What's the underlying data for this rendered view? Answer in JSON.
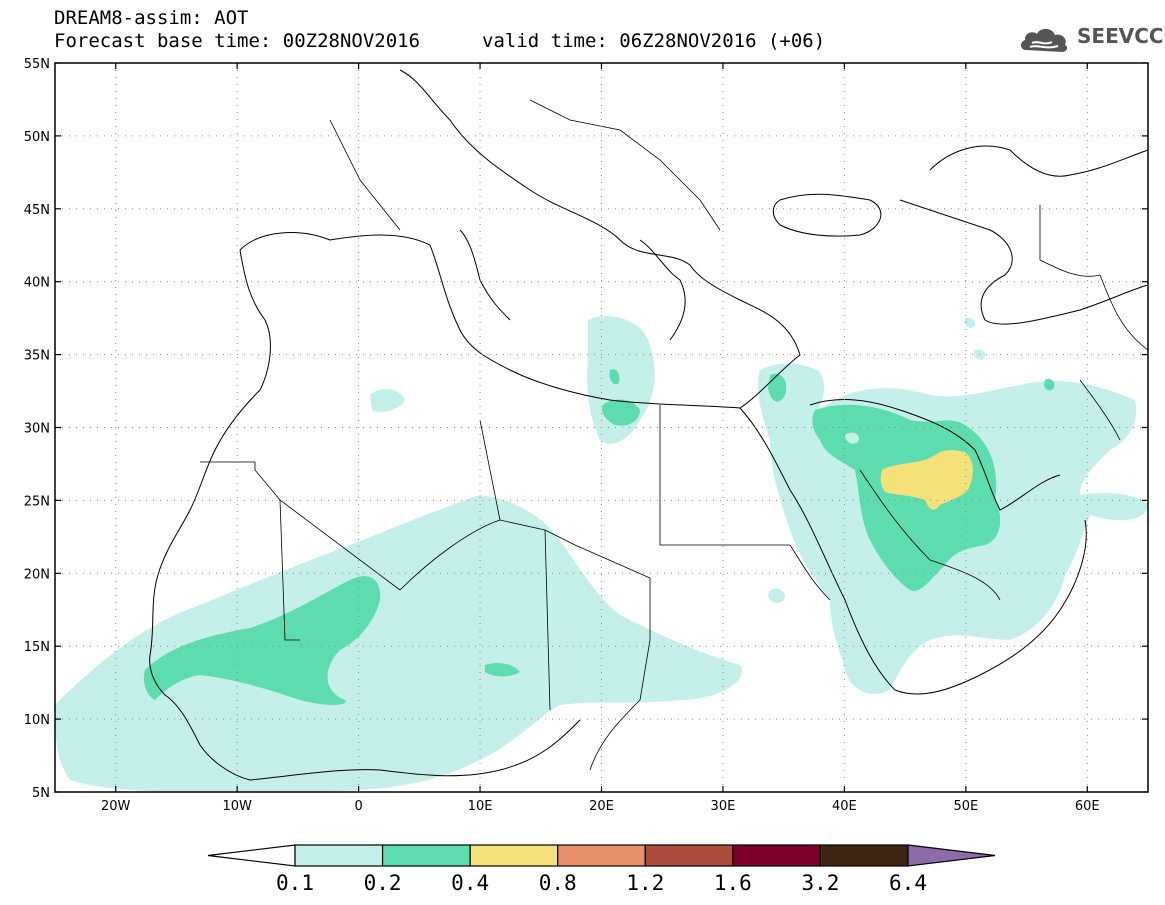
{
  "header": {
    "title": "DREAM8-assim: AOT",
    "base_time": "Forecast base time: 00Z28NOV2016",
    "valid_time": "valid time: 06Z28NOV2016 (+06)"
  },
  "logo": {
    "text": "SEEVCCC",
    "icon": "cloud-icon"
  },
  "map": {
    "lat_labels": [
      "55N",
      "50N",
      "45N",
      "40N",
      "35N",
      "30N",
      "25N",
      "20N",
      "15N",
      "10N",
      "5N"
    ],
    "lon_labels": [
      "20W",
      "10W",
      "0",
      "10E",
      "20E",
      "30E",
      "40E",
      "50E",
      "60E"
    ],
    "grid": "dotted",
    "extent": {
      "lon": [
        -25,
        65
      ],
      "lat": [
        5,
        55
      ]
    },
    "fill_colors": {
      "0.1-0.2": "#c5f0ea",
      "0.2-0.4": "#5ddcb0",
      "0.4-0.8": "#f4e17a"
    },
    "regions": [
      {
        "name": "Sahel dust band",
        "level": "0.1-0.2"
      },
      {
        "name": "West Africa core",
        "level": "0.2-0.4"
      },
      {
        "name": "Arabian Peninsula",
        "level": "0.2-0.4"
      },
      {
        "name": "Eastern Arabia maximum",
        "level": "0.4-0.8"
      },
      {
        "name": "Libya coast",
        "level": "0.2-0.4"
      }
    ]
  },
  "colorbar": {
    "labels": [
      "0.1",
      "0.2",
      "0.4",
      "0.8",
      "1.2",
      "1.6",
      "3.2",
      "6.4"
    ],
    "colors": [
      "#ffffff",
      "#c5f0ea",
      "#5ddcb0",
      "#f4e17a",
      "#e8906a",
      "#ad4b3d",
      "#7d0029",
      "#3d2514",
      "#8c6ba8"
    ]
  }
}
